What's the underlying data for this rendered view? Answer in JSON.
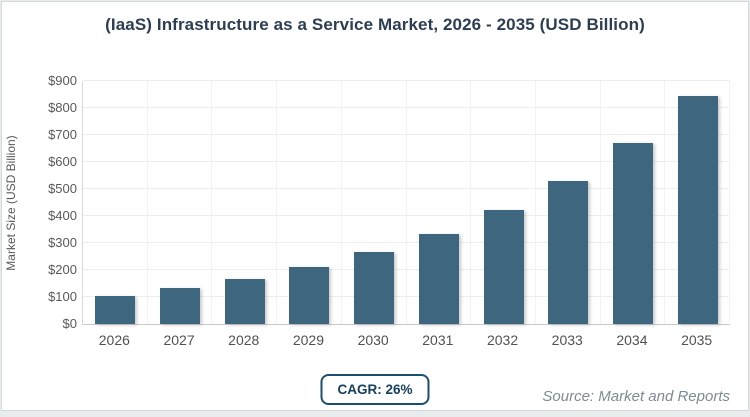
{
  "title": "(IaaS) Infrastructure as a Service Market, 2026 - 2035 (USD Billion)",
  "badge": {
    "label": "CAGR: 26%"
  },
  "source": {
    "text": "Source: Market and Reports"
  },
  "colors": {
    "bar": "#3e677f",
    "title": "#2d3e53",
    "badge_border": "#1d4e70",
    "badge_text": "#16405f",
    "axis_text": "#595959",
    "source_text": "#7d8b94"
  },
  "chart_data": {
    "type": "bar",
    "title": "(IaaS) Infrastructure as a Service Market, 2026 - 2035 (USD Billion)",
    "categories": [
      "2026",
      "2027",
      "2028",
      "2029",
      "2030",
      "2031",
      "2032",
      "2033",
      "2034",
      "2035"
    ],
    "values": [
      105,
      132,
      167,
      210,
      265,
      335,
      422,
      531,
      669,
      845
    ],
    "xlabel": "",
    "ylabel": "Market Size (USD Billion)",
    "ylim": [
      0,
      900
    ],
    "ytick_step": 100,
    "ytick_prefix": "$",
    "ytick_labels": [
      "$0",
      "$100",
      "$200",
      "$300",
      "$400",
      "$500",
      "$600",
      "$700",
      "$800",
      "$900"
    ],
    "grid": true,
    "legend": "none",
    "cagr_label": "CAGR: 26%",
    "source_label": "Source: Market and Reports"
  }
}
